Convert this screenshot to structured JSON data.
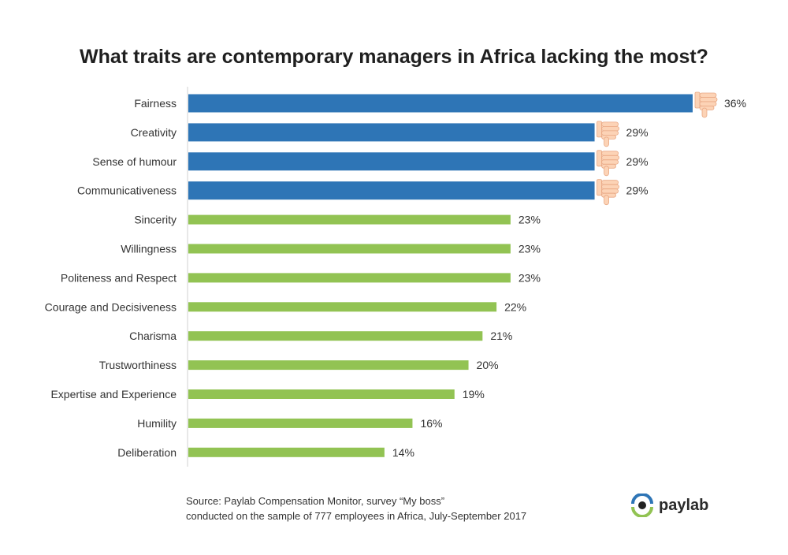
{
  "chart_data": {
    "type": "bar",
    "orientation": "horizontal",
    "title": "What traits are contemporary managers in Africa lacking the most?",
    "categories": [
      "Fairness",
      "Creativity",
      "Sense of humour",
      "Communicativeness",
      "Sincerity",
      "Willingness",
      "Politeness and Respect",
      "Courage and Decisiveness",
      "Charisma",
      "Trustworthiness",
      "Expertise and Experience",
      "Humility",
      "Deliberation"
    ],
    "values": [
      36,
      29,
      29,
      29,
      23,
      23,
      23,
      22,
      21,
      20,
      19,
      16,
      14
    ],
    "value_labels": [
      "36%",
      "29%",
      "29%",
      "29%",
      "23%",
      "23%",
      "23%",
      "22%",
      "21%",
      "20%",
      "19%",
      "16%",
      "14%"
    ],
    "highlighted": [
      true,
      true,
      true,
      true,
      false,
      false,
      false,
      false,
      false,
      false,
      false,
      false,
      false
    ],
    "colors": {
      "highlight": "#2e75b6",
      "normal": "#92c353",
      "thumb": "#fcd3b6",
      "thumb_stroke": "#e9a884"
    },
    "marker_icon": "thumbs-down-icon",
    "xlim": [
      0,
      36
    ],
    "grid": false
  },
  "footer": {
    "source_line1": "Source: Paylab Compensation Monitor, survey “My boss”",
    "source_line2": "conducted on the sample of 777 employees in Africa, July-September 2017"
  },
  "logo": {
    "text": "paylab",
    "icon": "paylab-eye-icon",
    "colors": {
      "blue": "#2e75b6",
      "green": "#92c353",
      "dark": "#222222"
    }
  }
}
